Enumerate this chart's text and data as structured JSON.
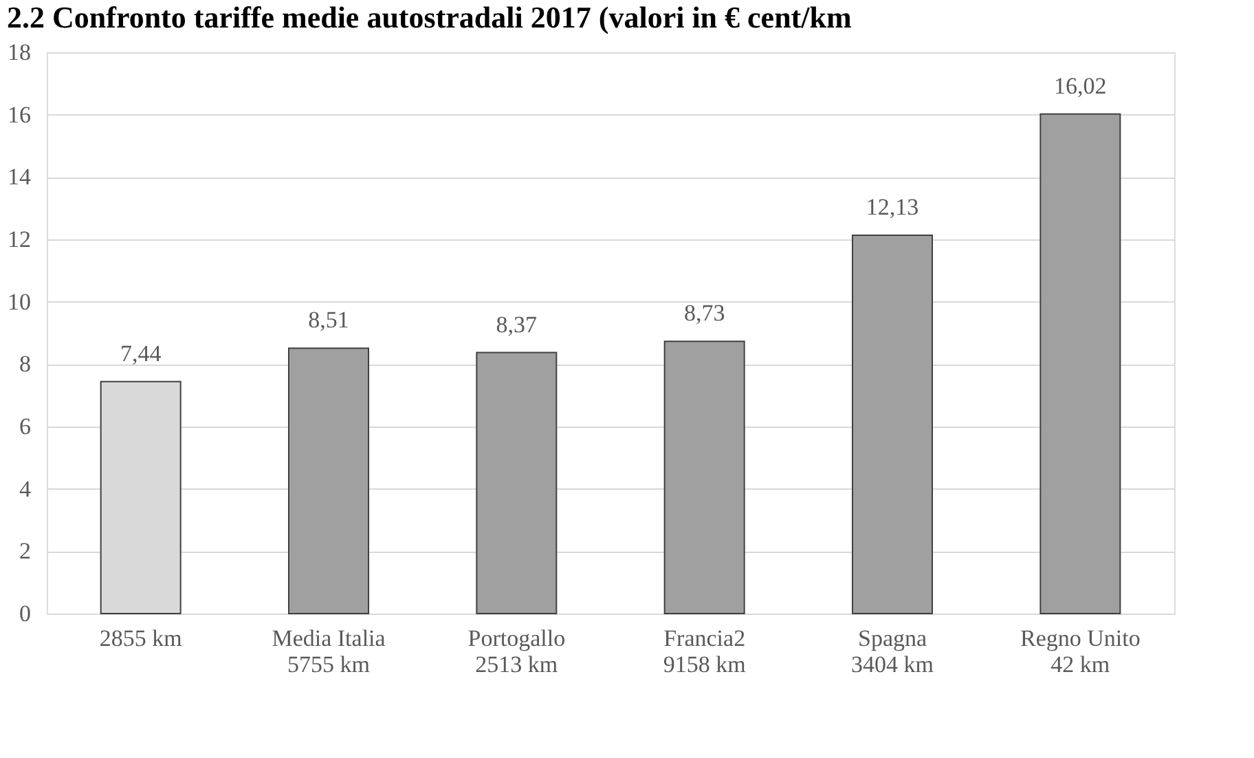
{
  "chart_data": {
    "type": "bar",
    "title": "2.2 Confronto tariffe medie autostradali 2017 (valori in € cent/km",
    "categories": [
      "2855 km",
      "Media Italia\n5755 km",
      "Portogallo\n2513 km",
      "Francia2\n9158 km",
      "Spagna\n3404 km",
      "Regno Unito\n42 km"
    ],
    "values": [
      7.44,
      8.51,
      8.37,
      8.73,
      12.13,
      16.02
    ],
    "colors": [
      "#d9d9d9",
      "#a0a0a0",
      "#a0a0a0",
      "#a0a0a0",
      "#a0a0a0",
      "#a0a0a0"
    ],
    "value_labels": [
      "7,44",
      "8,51",
      "8,37",
      "8,73",
      "12,13",
      "16,02"
    ],
    "ylim": [
      0,
      18
    ],
    "yticks": [
      0,
      2,
      4,
      6,
      8,
      10,
      12,
      14,
      16,
      18
    ],
    "grid": "y"
  }
}
